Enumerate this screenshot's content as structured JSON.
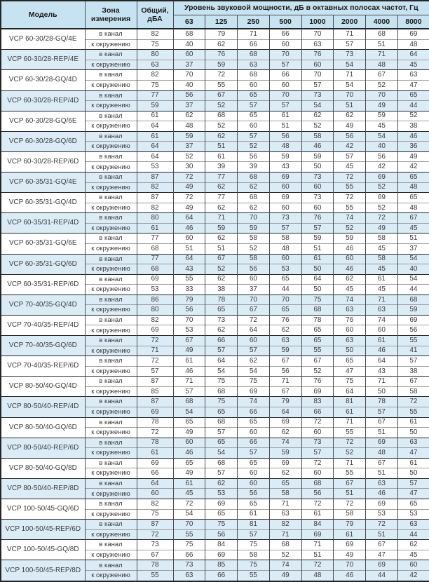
{
  "colors": {
    "header_bg": "#c7e2f1",
    "band_bg": "#dbecf7",
    "border_dark": "#262626",
    "border_mid": "#4d4d4d",
    "border_light": "#9c9c9c",
    "text": "#3c3c3c",
    "header_text": "#1c1c1c"
  },
  "header": {
    "model": "Модель",
    "zone": "Зона измерения",
    "total": "Общий, дБА",
    "levels_title": "Уровень звуковой мощности, дБ в октавных полосах частот, Гц",
    "frequencies": [
      "63",
      "125",
      "250",
      "500",
      "1000",
      "2000",
      "4000",
      "8000"
    ]
  },
  "zone_labels": [
    "в канал",
    "к окружению"
  ],
  "models": [
    {
      "name": "VCP 60-30/28-GQ/4E",
      "shaded": false,
      "duct": {
        "total": 82,
        "levels": [
          68,
          79,
          71,
          66,
          70,
          71,
          68,
          69
        ]
      },
      "ambient": {
        "total": 75,
        "levels": [
          40,
          62,
          66,
          60,
          63,
          57,
          51,
          48
        ]
      }
    },
    {
      "name": "VCP 60-30/28-REP/4E",
      "shaded": true,
      "duct": {
        "total": 80,
        "levels": [
          60,
          76,
          68,
          70,
          76,
          73,
          71,
          64
        ]
      },
      "ambient": {
        "total": 63,
        "levels": [
          37,
          59,
          63,
          57,
          60,
          54,
          48,
          45
        ]
      }
    },
    {
      "name": "VCP 60-30/28-GQ/4D",
      "shaded": false,
      "duct": {
        "total": 82,
        "levels": [
          70,
          72,
          68,
          66,
          70,
          71,
          67,
          63
        ]
      },
      "ambient": {
        "total": 75,
        "levels": [
          40,
          55,
          60,
          60,
          57,
          54,
          52,
          47
        ]
      }
    },
    {
      "name": "VCP 60-30/28-REP/4D",
      "shaded": true,
      "duct": {
        "total": 77,
        "levels": [
          56,
          67,
          65,
          70,
          73,
          70,
          70,
          65
        ]
      },
      "ambient": {
        "total": 59,
        "levels": [
          37,
          52,
          57,
          57,
          54,
          51,
          49,
          44
        ]
      }
    },
    {
      "name": "VCP 60-30/28-GQ/6E",
      "shaded": false,
      "duct": {
        "total": 61,
        "levels": [
          62,
          68,
          65,
          61,
          62,
          62,
          59,
          52
        ]
      },
      "ambient": {
        "total": 64,
        "levels": [
          48,
          52,
          60,
          51,
          52,
          49,
          45,
          38
        ]
      }
    },
    {
      "name": "VCP 60-30/28-GQ/6D",
      "shaded": true,
      "duct": {
        "total": 61,
        "levels": [
          59,
          62,
          57,
          56,
          58,
          56,
          54,
          46
        ]
      },
      "ambient": {
        "total": 64,
        "levels": [
          37,
          51,
          52,
          48,
          46,
          42,
          40,
          36
        ]
      }
    },
    {
      "name": "VCP 60-30/28-REP/6D",
      "shaded": false,
      "duct": {
        "total": 64,
        "levels": [
          52,
          61,
          56,
          59,
          59,
          57,
          56,
          49
        ]
      },
      "ambient": {
        "total": 53,
        "levels": [
          30,
          39,
          39,
          43,
          50,
          45,
          42,
          42
        ]
      }
    },
    {
      "name": "VCP 60-35/31-GQ/4E",
      "shaded": true,
      "duct": {
        "total": 87,
        "levels": [
          72,
          77,
          68,
          69,
          73,
          72,
          69,
          65
        ]
      },
      "ambient": {
        "total": 82,
        "levels": [
          49,
          62,
          62,
          60,
          60,
          55,
          52,
          48
        ]
      }
    },
    {
      "name": "VCP 60-35/31-GQ/4D",
      "shaded": false,
      "duct": {
        "total": 87,
        "levels": [
          72,
          77,
          68,
          69,
          73,
          72,
          69,
          65
        ]
      },
      "ambient": {
        "total": 82,
        "levels": [
          49,
          62,
          62,
          60,
          60,
          55,
          52,
          48
        ]
      }
    },
    {
      "name": "VCP 60-35/31-REP/4D",
      "shaded": true,
      "duct": {
        "total": 80,
        "levels": [
          64,
          71,
          70,
          73,
          76,
          74,
          72,
          67
        ]
      },
      "ambient": {
        "total": 61,
        "levels": [
          46,
          59,
          59,
          57,
          57,
          52,
          49,
          45
        ]
      }
    },
    {
      "name": "VCP 60-35/31-GQ/6E",
      "shaded": false,
      "duct": {
        "total": 77,
        "levels": [
          60,
          62,
          58,
          58,
          59,
          59,
          58,
          51
        ]
      },
      "ambient": {
        "total": 68,
        "levels": [
          51,
          51,
          52,
          48,
          51,
          46,
          45,
          37
        ]
      }
    },
    {
      "name": "VCP 60-35/31-GQ/6D",
      "shaded": true,
      "duct": {
        "total": 77,
        "levels": [
          64,
          67,
          58,
          60,
          61,
          60,
          58,
          54
        ]
      },
      "ambient": {
        "total": 68,
        "levels": [
          43,
          52,
          56,
          53,
          50,
          46,
          45,
          40
        ]
      }
    },
    {
      "name": "VCP 60-35/31-REP/6D",
      "shaded": false,
      "duct": {
        "total": 69,
        "levels": [
          55,
          62,
          60,
          65,
          64,
          62,
          61,
          54
        ]
      },
      "ambient": {
        "total": 53,
        "levels": [
          33,
          38,
          37,
          44,
          50,
          45,
          45,
          44
        ]
      }
    },
    {
      "name": "VCP 70-40/35-GQ/4D",
      "shaded": true,
      "duct": {
        "total": 86,
        "levels": [
          79,
          78,
          70,
          70,
          75,
          74,
          71,
          68
        ]
      },
      "ambient": {
        "total": 80,
        "levels": [
          56,
          65,
          67,
          65,
          68,
          63,
          63,
          59
        ]
      }
    },
    {
      "name": "VCP 70-40/35-REP/4D",
      "shaded": false,
      "duct": {
        "total": 82,
        "levels": [
          70,
          73,
          72,
          76,
          78,
          76,
          74,
          69
        ]
      },
      "ambient": {
        "total": 69,
        "levels": [
          53,
          62,
          64,
          62,
          65,
          60,
          60,
          56
        ]
      }
    },
    {
      "name": "VCP 70-40/35-GQ/6D",
      "shaded": true,
      "duct": {
        "total": 72,
        "levels": [
          67,
          66,
          60,
          63,
          65,
          63,
          61,
          55
        ]
      },
      "ambient": {
        "total": 71,
        "levels": [
          49,
          57,
          57,
          59,
          55,
          50,
          46,
          41
        ]
      }
    },
    {
      "name": "VCP 70-40/35-REP/6D",
      "shaded": false,
      "duct": {
        "total": 72,
        "levels": [
          61,
          64,
          62,
          67,
          67,
          65,
          64,
          57
        ]
      },
      "ambient": {
        "total": 57,
        "levels": [
          46,
          54,
          54,
          56,
          52,
          47,
          43,
          38
        ]
      }
    },
    {
      "name": "VCP 80-50/40-GQ/4D",
      "shaded": false,
      "duct": {
        "total": 87,
        "levels": [
          71,
          75,
          75,
          71,
          76,
          75,
          71,
          67
        ]
      },
      "ambient": {
        "total": 85,
        "levels": [
          57,
          68,
          69,
          67,
          69,
          64,
          50,
          58
        ]
      }
    },
    {
      "name": "VCP 80-50/40-REP/4D",
      "shaded": true,
      "duct": {
        "total": 87,
        "levels": [
          68,
          75,
          74,
          79,
          83,
          81,
          78,
          72
        ]
      },
      "ambient": {
        "total": 69,
        "levels": [
          54,
          65,
          66,
          64,
          66,
          61,
          57,
          55
        ]
      }
    },
    {
      "name": "VCP 80-50/40-GQ/6D",
      "shaded": false,
      "duct": {
        "total": 78,
        "levels": [
          65,
          68,
          65,
          69,
          72,
          71,
          67,
          61
        ]
      },
      "ambient": {
        "total": 72,
        "levels": [
          49,
          57,
          60,
          62,
          60,
          55,
          51,
          50
        ]
      }
    },
    {
      "name": "VCP 80-50/40-REP/6D",
      "shaded": true,
      "duct": {
        "total": 78,
        "levels": [
          60,
          65,
          66,
          74,
          73,
          72,
          69,
          63
        ]
      },
      "ambient": {
        "total": 61,
        "levels": [
          46,
          54,
          57,
          59,
          57,
          52,
          48,
          47
        ]
      }
    },
    {
      "name": "VCP 80-50/40-GQ/8D",
      "shaded": false,
      "duct": {
        "total": 69,
        "levels": [
          65,
          68,
          65,
          69,
          72,
          71,
          67,
          61
        ]
      },
      "ambient": {
        "total": 66,
        "levels": [
          49,
          57,
          60,
          62,
          60,
          55,
          51,
          50
        ]
      }
    },
    {
      "name": "VCP 80-50/40-REP/8D",
      "shaded": true,
      "duct": {
        "total": 64,
        "levels": [
          61,
          62,
          60,
          65,
          68,
          67,
          63,
          57
        ]
      },
      "ambient": {
        "total": 60,
        "levels": [
          45,
          53,
          56,
          58,
          56,
          51,
          46,
          47
        ]
      }
    },
    {
      "name": "VCP 100-50/45-GQ/6D",
      "shaded": false,
      "duct": {
        "total": 82,
        "levels": [
          72,
          69,
          65,
          71,
          72,
          72,
          69,
          65
        ]
      },
      "ambient": {
        "total": 75,
        "levels": [
          54,
          65,
          61,
          63,
          61,
          58,
          53,
          53
        ]
      }
    },
    {
      "name": "VCP 100-50/45-REP/6D",
      "shaded": true,
      "duct": {
        "total": 87,
        "levels": [
          70,
          75,
          81,
          82,
          84,
          79,
          72,
          63
        ]
      },
      "ambient": {
        "total": 72,
        "levels": [
          55,
          56,
          57,
          71,
          69,
          61,
          51,
          44
        ]
      }
    },
    {
      "name": "VCP 100-50/45-GQ/8D",
      "shaded": false,
      "duct": {
        "total": 73,
        "levels": [
          75,
          84,
          75,
          68,
          71,
          69,
          67,
          62
        ]
      },
      "ambient": {
        "total": 67,
        "levels": [
          66,
          69,
          58,
          52,
          51,
          49,
          47,
          45
        ]
      }
    },
    {
      "name": "VCP 100-50/45-REP/8D",
      "shaded": true,
      "duct": {
        "total": 78,
        "levels": [
          73,
          85,
          75,
          74,
          72,
          70,
          69,
          60
        ]
      },
      "ambient": {
        "total": 55,
        "levels": [
          63,
          66,
          55,
          49,
          48,
          46,
          44,
          42
        ]
      }
    }
  ]
}
